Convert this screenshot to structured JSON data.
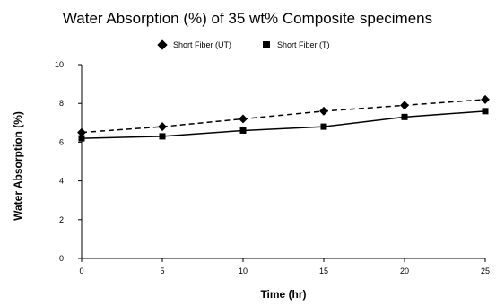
{
  "chart_data": {
    "type": "line",
    "title": "Water Absorption (%) of 35 wt% Composite specimens",
    "xlabel": "Time (hr)",
    "ylabel": "Water Absorption (%)",
    "x": [
      0,
      5,
      10,
      15,
      20,
      25
    ],
    "xlim": [
      0,
      25
    ],
    "ylim": [
      0,
      10
    ],
    "xticks": [
      "0",
      "5",
      "10",
      "15",
      "20",
      "25"
    ],
    "yticks": [
      "0",
      "2",
      "4",
      "6",
      "8",
      "10"
    ],
    "grid": false,
    "legend_position": "top",
    "series": [
      {
        "name": "Short Fiber (UT)",
        "values": [
          6.5,
          6.8,
          7.2,
          7.6,
          7.9,
          8.2
        ],
        "marker": "diamond",
        "line_style": "dashed",
        "color": "#000000"
      },
      {
        "name": "Short Fiber (T)",
        "values": [
          6.2,
          6.3,
          6.6,
          6.8,
          7.3,
          7.6
        ],
        "marker": "square",
        "line_style": "solid",
        "color": "#000000"
      }
    ]
  }
}
